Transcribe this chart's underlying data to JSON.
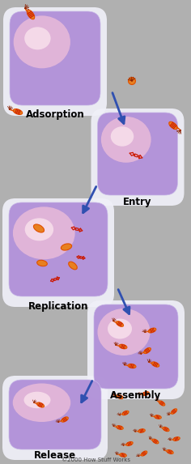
{
  "background_color": "#b0b0b0",
  "white_card": "#f0f0f8",
  "cell_outer": "#dcd8f0",
  "cell_fill": "#b090d8",
  "cell_highlight": "#f0c0d8",
  "phage_orange": "#e05000",
  "phage_head_col": "#e88020",
  "phage_stripe": "#cc1800",
  "phage_leg": "#8b2000",
  "arrow_color": "#3050b0",
  "text_color": "#000000",
  "label_fontsize": 8.5,
  "copyright_text": "©2000 How Stuff Works",
  "copyright_fontsize": 5,
  "stages": [
    "Adsorption",
    "Entry",
    "Replication",
    "Assembly",
    "Release"
  ],
  "figsize": [
    2.36,
    5.73
  ],
  "dpi": 100,
  "adsorption_cell": [
    68,
    73,
    108,
    118
  ],
  "entry_cell": [
    170,
    183,
    95,
    100
  ],
  "replication_cell": [
    72,
    298,
    118,
    118
  ],
  "assembly_cell": [
    168,
    415,
    100,
    100
  ],
  "release_cell": [
    68,
    507,
    110,
    88
  ]
}
